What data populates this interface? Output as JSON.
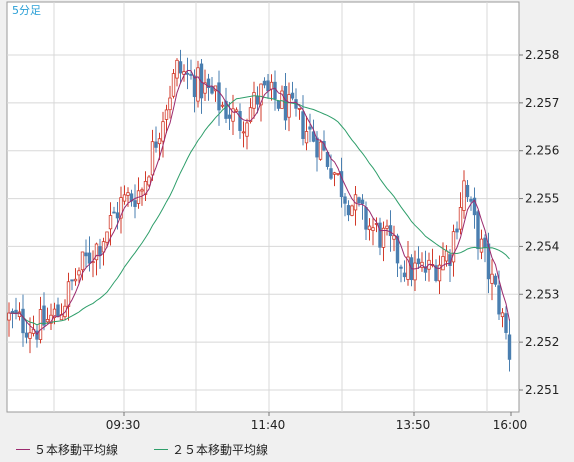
{
  "chart_data": {
    "type": "candlestick",
    "interval_label": "5分足",
    "x_tick_labels": [
      "09:30",
      "11:40",
      "13:50",
      "16:00"
    ],
    "y_ticks": [
      2.251,
      2.252,
      2.253,
      2.254,
      2.255,
      2.256,
      2.257,
      2.258
    ],
    "ylim": [
      2.2505,
      2.2588
    ],
    "grid": true,
    "legend_position": "bottom-left",
    "colors": {
      "up": "#d23a2a",
      "down": "#4a7fb0",
      "ma5": "#9b2a6e",
      "ma25": "#2e9e6a",
      "grid": "#d8d8d8",
      "plot_bg": "#ffffff"
    },
    "series": [
      {
        "name": "５本移動平均線",
        "color": "#9b2a6e"
      },
      {
        "name": "２５本移動平均線",
        "color": "#2e9e6a"
      }
    ],
    "anchors": [
      [
        0,
        2.2525
      ],
      [
        8,
        2.2523
      ],
      [
        14,
        2.2526
      ],
      [
        20,
        2.2535
      ],
      [
        26,
        2.2541
      ],
      [
        32,
        2.2549
      ],
      [
        38,
        2.2552
      ],
      [
        44,
        2.2568
      ],
      [
        48,
        2.2577
      ],
      [
        54,
        2.2574
      ],
      [
        60,
        2.257
      ],
      [
        66,
        2.2566
      ],
      [
        72,
        2.2572
      ],
      [
        78,
        2.257
      ],
      [
        83,
        2.2566
      ],
      [
        88,
        2.2562
      ],
      [
        92,
        2.2557
      ],
      [
        96,
        2.2551
      ],
      [
        102,
        2.2545
      ],
      [
        108,
        2.2541
      ],
      [
        114,
        2.2535
      ],
      [
        120,
        2.2535
      ],
      [
        126,
        2.2539
      ],
      [
        130,
        2.2553
      ],
      [
        132,
        2.2547
      ],
      [
        136,
        2.2537
      ],
      [
        140,
        2.2528
      ],
      [
        143,
        2.2518
      ]
    ]
  },
  "legend": {
    "ma5_label": "５本移動平均線",
    "ma25_label": "２５本移動平均線"
  }
}
